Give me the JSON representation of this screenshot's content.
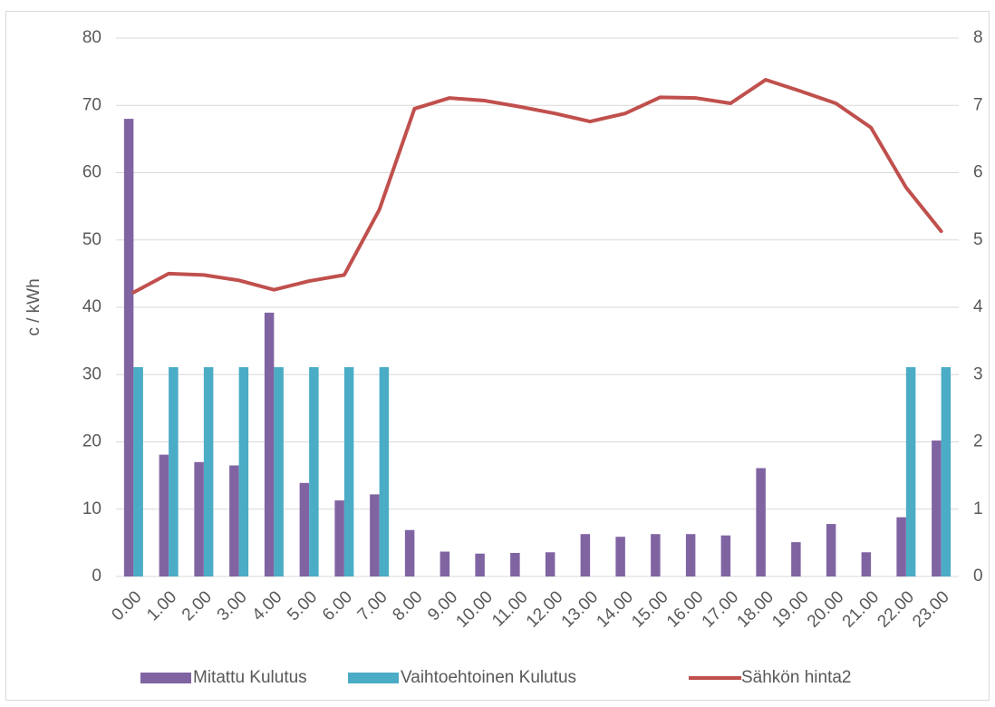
{
  "chart_data": {
    "type": "bar-line",
    "ylabel": "c / kWh",
    "categories": [
      "0.00",
      "1.00",
      "2.00",
      "3.00",
      "4.00",
      "5.00",
      "6.00",
      "7.00",
      "8.00",
      "9.00",
      "10.00",
      "11.00",
      "12.00",
      "13.00",
      "14.00",
      "15.00",
      "16.00",
      "17.00",
      "18.00",
      "19.00",
      "20.00",
      "21.00",
      "22.00",
      "23.00"
    ],
    "series": [
      {
        "name": "Mitattu Kulutus",
        "type": "bar",
        "color": "#8064a2",
        "values": [
          68,
          18.1,
          17,
          16.5,
          39.2,
          13.9,
          11.3,
          12.2,
          6.9,
          3.7,
          3.4,
          3.5,
          3.6,
          6.3,
          5.9,
          6.3,
          6.3,
          6.1,
          16.1,
          5.1,
          7.8,
          3.6,
          8.8,
          20.2
        ]
      },
      {
        "name": "Vaihtoehtoinen Kulutus",
        "type": "bar",
        "color": "#4bacc6",
        "values": [
          31.1,
          31.1,
          31.1,
          31.1,
          31.1,
          31.1,
          31.1,
          31.1,
          0,
          0,
          0,
          0,
          0,
          0,
          0,
          0,
          0,
          0,
          0,
          0,
          0,
          0,
          31.1,
          31.1
        ]
      },
      {
        "name": "Sähkön hinta2",
        "type": "line",
        "axis": "y2",
        "color": "#c0504d",
        "values": [
          4.22,
          4.5,
          4.48,
          4.4,
          4.26,
          4.39,
          4.48,
          5.45,
          6.95,
          7.11,
          7.07,
          6.98,
          6.88,
          6.76,
          6.88,
          7.12,
          7.11,
          7.03,
          7.38,
          7.21,
          7.03,
          6.67,
          5.78,
          5.13
        ]
      }
    ],
    "ylim": [
      0,
      80
    ],
    "yticks": [
      0,
      10,
      20,
      30,
      40,
      50,
      60,
      70,
      80
    ],
    "y2lim": [
      0,
      8
    ],
    "y2ticks": [
      0,
      1,
      2,
      3,
      4,
      5,
      6,
      7,
      8
    ],
    "grid": true,
    "legend": "bottom"
  }
}
